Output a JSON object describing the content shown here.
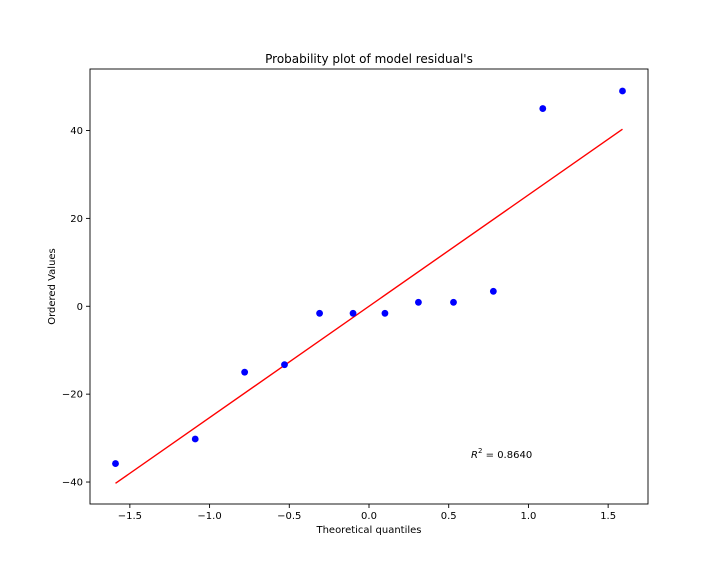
{
  "chart_data": {
    "type": "scatter",
    "title": "Probability plot of model residual's",
    "xlabel": "Theoretical quantiles",
    "ylabel": "Ordered Values",
    "xlim": [
      -1.75,
      1.75
    ],
    "ylim": [
      -45,
      54
    ],
    "x_ticks": [
      -1.5,
      -1.0,
      -0.5,
      0.0,
      0.5,
      1.0,
      1.5
    ],
    "x_tick_labels": [
      "−1.5",
      "−1.0",
      "−0.5",
      "0.0",
      "0.5",
      "1.0",
      "1.5"
    ],
    "y_ticks": [
      -40,
      -20,
      0,
      20,
      40
    ],
    "y_tick_labels": [
      "−40",
      "−20",
      "0",
      "20",
      "40"
    ],
    "grid": false,
    "points": {
      "color": "#0000ff",
      "x": [
        -1.59,
        -1.09,
        -0.78,
        -0.53,
        -0.31,
        -0.1,
        0.1,
        0.31,
        0.53,
        0.78,
        1.09,
        1.59
      ],
      "y": [
        -35.8,
        -30.2,
        -15.0,
        -13.3,
        -1.6,
        -1.6,
        -1.6,
        0.9,
        0.9,
        3.4,
        45.0,
        49.0
      ]
    },
    "fit_line": {
      "color": "#ff0000",
      "x": [
        -1.59,
        1.59
      ],
      "y": [
        -40.3,
        40.3
      ]
    },
    "annotation": {
      "symbol": "R",
      "superscript": "2",
      "text": " = 0.8640",
      "x": 0.64,
      "y": -34.5
    }
  }
}
